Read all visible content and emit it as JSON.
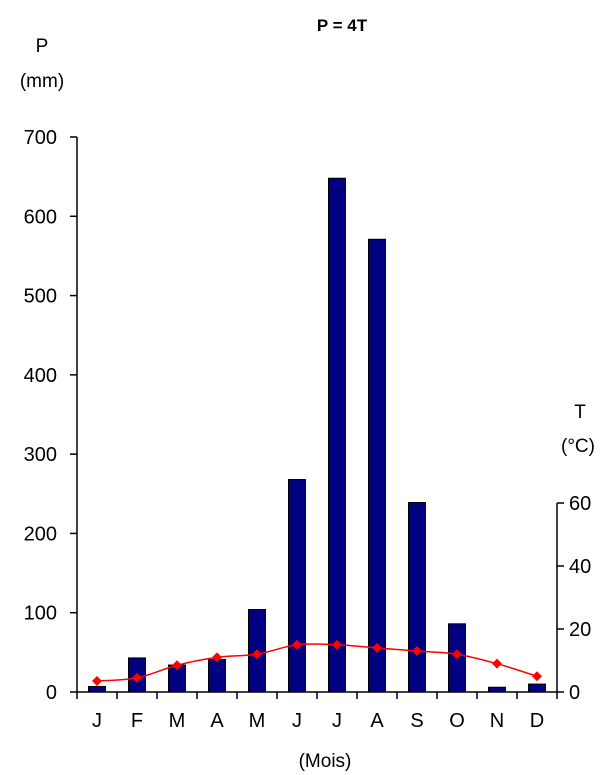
{
  "chart_data": {
    "type": "bar",
    "title": "P = 4T",
    "categories": [
      "J",
      "F",
      "M",
      "A",
      "M",
      "J",
      "J",
      "A",
      "S",
      "O",
      "N",
      "D"
    ],
    "xlabel": "(Mois)",
    "y_left": {
      "label_line1": "P",
      "label_line2": "(mm)",
      "range": [
        0,
        700
      ],
      "ticks": [
        0,
        100,
        200,
        300,
        400,
        500,
        600,
        700
      ]
    },
    "y_right": {
      "label_line1": "T",
      "label_line2": "(°C)",
      "range": [
        0,
        60
      ],
      "ticks": [
        0,
        20,
        40,
        60
      ]
    },
    "series": [
      {
        "type": "bar",
        "axis": "left",
        "color": "#000080",
        "values": [
          7,
          43,
          34,
          41,
          104,
          268,
          648,
          571,
          239,
          86,
          6,
          10
        ]
      },
      {
        "type": "line",
        "axis": "right",
        "color": "#ff0000",
        "marker": "diamond",
        "values": [
          3.5,
          4.5,
          8.5,
          11,
          12,
          15,
          15,
          14,
          13,
          12,
          9,
          5
        ]
      }
    ],
    "grid": false,
    "legend": "none"
  }
}
